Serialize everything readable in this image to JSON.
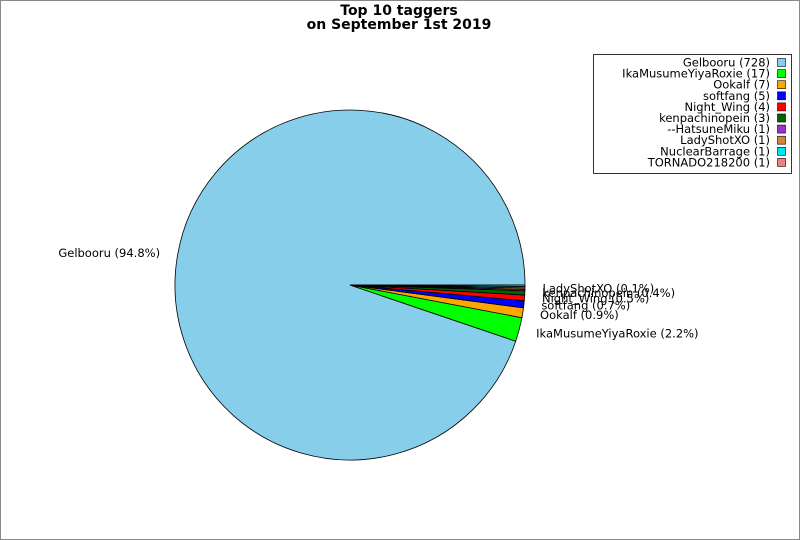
{
  "chart_data": {
    "type": "pie",
    "title": "Top 10 taggers",
    "subtitle": "on September 1st 2019",
    "categories": [
      "Gelbooru",
      "IkaMusumeYiyaRoxie",
      "Ookalf",
      "softfang",
      "Night_Wing",
      "kenpachinopein",
      "--HatsuneMiku",
      "LadyShotXO",
      "NuclearBarrage",
      "TORNADO218200"
    ],
    "values": [
      728,
      17,
      7,
      5,
      4,
      3,
      1,
      1,
      1,
      1
    ],
    "legend_labels": [
      "Gelbooru (728)",
      "IkaMusumeYiyaRoxie (17)",
      "Ookalf (7)",
      "softfang (5)",
      "Night_Wing (4)",
      "kenpachinopein (3)",
      "--HatsuneMiku (1)",
      "LadyShotXO (1)",
      "NuclearBarrage (1)",
      "TORNADO218200 (1)"
    ],
    "value_labels": [
      "Gelbooru (94.8%)",
      "IkaMusumeYiyaRoxie (2.2%)",
      "Ookalf (0.9%)",
      "softfang (0.7%)",
      "Night_Wing (0.5%)",
      "kenpachinopein (0.4%)",
      null,
      "LadyShotXO (0.1%)",
      null,
      null
    ],
    "colors": [
      "#87ceeb",
      "#00ff00",
      "#ffa500",
      "#0000ff",
      "#ff0000",
      "#006400",
      "#9932cc",
      "#cd853f",
      "#00e5ee",
      "#f08080"
    ],
    "legend": "upper right"
  }
}
